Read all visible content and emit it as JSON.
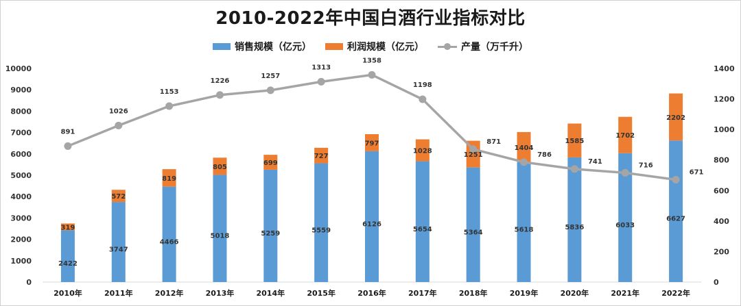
{
  "chart_data": {
    "type": "bar",
    "title": "2010-2022年中国白酒行业指标对比",
    "categories": [
      "2010年",
      "2011年",
      "2012年",
      "2013年",
      "2014年",
      "2015年",
      "2016年",
      "2017年",
      "2018年",
      "2019年",
      "2020年",
      "2021年",
      "2022年"
    ],
    "series": [
      {
        "name": "销售规模（亿元）",
        "kind": "stacked-bar",
        "axis": "left",
        "color": "#5b9bd5",
        "values": [
          2422,
          3747,
          4466,
          5018,
          5259,
          5559,
          6126,
          5654,
          5364,
          5618,
          5836,
          6033,
          6627
        ]
      },
      {
        "name": "利润规模（亿元）",
        "kind": "stacked-bar",
        "axis": "left",
        "color": "#ed7d31",
        "values": [
          319,
          572,
          819,
          805,
          699,
          727,
          797,
          1028,
          1251,
          1404,
          1585,
          1702,
          2202
        ]
      },
      {
        "name": "产量（万千升）",
        "kind": "line",
        "axis": "right",
        "color": "#a5a5a5",
        "values": [
          891,
          1026,
          1153,
          1226,
          1257,
          1313,
          1358,
          1198,
          871,
          786,
          741,
          716,
          671
        ]
      }
    ],
    "ylim_left": [
      0,
      10000
    ],
    "yticks_left": [
      0,
      1000,
      2000,
      3000,
      4000,
      5000,
      6000,
      7000,
      8000,
      9000,
      10000
    ],
    "ylim_right": [
      0,
      1400
    ],
    "yticks_right": [
      0,
      200,
      400,
      600,
      800,
      1000,
      1200,
      1400
    ],
    "grid": false,
    "legend": "top-center"
  }
}
